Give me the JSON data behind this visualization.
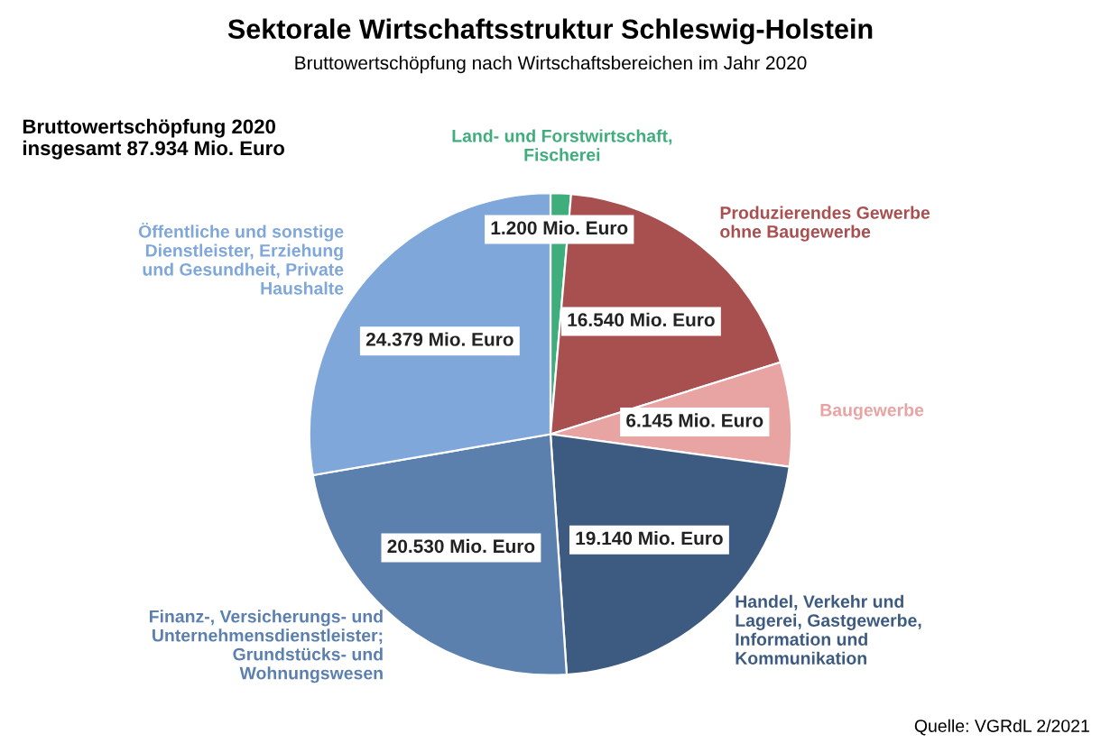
{
  "chart_data": {
    "type": "pie",
    "title": "Sektorale Wirtschaftsstruktur Schleswig-Holstein",
    "subtitle": "Bruttowertschöpfung nach Wirtschaftsbereichen im Jahr 2020",
    "categories": [
      "Land- und Forstwirtschaft,\nFischerei",
      "Produzierendes Gewerbe\nohne Baugewerbe",
      "Baugewerbe",
      "Handel, Verkehr und\nLagerei, Gastgewerbe,\nInformation und\nKommunikation",
      "Finanz-, Versicherungs- und\nUnternehmensdienstleister;\nGrundstücks- und\nWohnungswesen",
      "Öffentliche und sonstige\nDienstleister, Erziehung\nund Gesundheit, Private\nHaushalte"
    ],
    "values": [
      1200,
      16540,
      6145,
      19140,
      20530,
      24379
    ],
    "value_labels": [
      "1.200 Mio. Euro",
      "16.540 Mio. Euro",
      "6.145 Mio. Euro",
      "19.140 Mio. Euro",
      "20.530 Mio. Euro",
      "24.379 Mio. Euro"
    ],
    "colors": [
      "#3fae7c",
      "#a84f4f",
      "#e8a3a3",
      "#3d5b80",
      "#5c80ae",
      "#7fa7da"
    ],
    "annotations": [
      "Bruttowertschöpfung 2020\ninsgesamt 87.934 Mio. Euro",
      "Quelle: VGRdL 2/2021"
    ]
  }
}
